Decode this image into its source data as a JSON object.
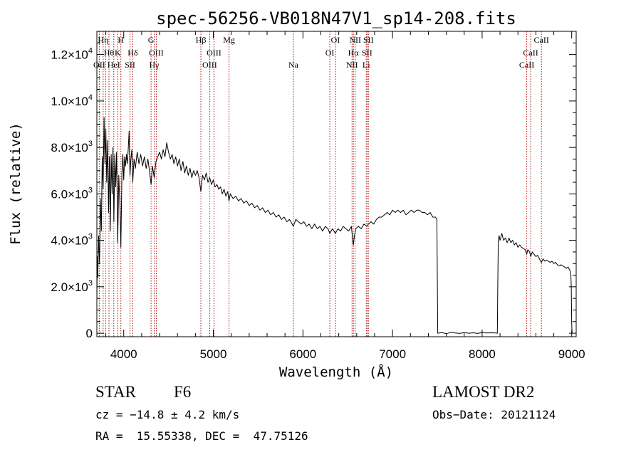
{
  "chart_data": {
    "type": "line",
    "title": "spec-56256-VB018N47V1_sp14-208.fits",
    "xlabel": "Wavelength (Å)",
    "ylabel": "Flux (relative)",
    "xlim": [
      3700,
      9050
    ],
    "ylim": [
      -150,
      13000
    ],
    "x_ticks": [
      4000,
      5000,
      6000,
      7000,
      8000,
      9000
    ],
    "y_ticks": [
      {
        "value": 0,
        "mant": "0",
        "exp": ""
      },
      {
        "value": 2000,
        "mant": "2.0×10",
        "exp": "3"
      },
      {
        "value": 4000,
        "mant": "4.0×10",
        "exp": "3"
      },
      {
        "value": 6000,
        "mant": "6.0×10",
        "exp": "3"
      },
      {
        "value": 8000,
        "mant": "8.0×10",
        "exp": "3"
      },
      {
        "value": 10000,
        "mant": "1.0×10",
        "exp": "4"
      },
      {
        "value": 12000,
        "mant": "1.2×10",
        "exp": "4"
      }
    ],
    "grid": false,
    "series": [
      {
        "points": [
          [
            3700,
            1500
          ],
          [
            3705,
            3300
          ],
          [
            3710,
            2400
          ],
          [
            3720,
            4200
          ],
          [
            3730,
            3000
          ],
          [
            3740,
            5800
          ],
          [
            3750,
            4400
          ],
          [
            3760,
            7600
          ],
          [
            3770,
            6200
          ],
          [
            3780,
            9300
          ],
          [
            3790,
            7300
          ],
          [
            3800,
            8800
          ],
          [
            3810,
            6500
          ],
          [
            3820,
            8300
          ],
          [
            3830,
            5200
          ],
          [
            3840,
            7600
          ],
          [
            3850,
            4400
          ],
          [
            3860,
            7700
          ],
          [
            3870,
            6000
          ],
          [
            3880,
            8000
          ],
          [
            3890,
            4800
          ],
          [
            3900,
            7700
          ],
          [
            3910,
            6300
          ],
          [
            3920,
            7800
          ],
          [
            3933,
            3900
          ],
          [
            3945,
            6800
          ],
          [
            3960,
            5200
          ],
          [
            3968,
            3700
          ],
          [
            3980,
            6900
          ],
          [
            3990,
            7700
          ],
          [
            4000,
            6600
          ],
          [
            4010,
            7600
          ],
          [
            4020,
            7200
          ],
          [
            4030,
            7700
          ],
          [
            4040,
            7300
          ],
          [
            4050,
            7900
          ],
          [
            4060,
            8700
          ],
          [
            4070,
            6800
          ],
          [
            4080,
            7500
          ],
          [
            4090,
            7900
          ],
          [
            4101,
            6500
          ],
          [
            4115,
            7500
          ],
          [
            4130,
            7100
          ],
          [
            4150,
            7800
          ],
          [
            4170,
            7300
          ],
          [
            4190,
            7700
          ],
          [
            4210,
            7200
          ],
          [
            4230,
            7600
          ],
          [
            4250,
            7100
          ],
          [
            4270,
            7500
          ],
          [
            4290,
            6900
          ],
          [
            4305,
            6400
          ],
          [
            4320,
            7200
          ],
          [
            4340,
            6700
          ],
          [
            4360,
            7400
          ],
          [
            4380,
            7600
          ],
          [
            4400,
            7800
          ],
          [
            4420,
            7500
          ],
          [
            4440,
            7900
          ],
          [
            4460,
            7600
          ],
          [
            4480,
            8200
          ],
          [
            4500,
            7800
          ],
          [
            4520,
            7500
          ],
          [
            4540,
            7700
          ],
          [
            4560,
            7300
          ],
          [
            4580,
            7600
          ],
          [
            4600,
            7200
          ],
          [
            4620,
            7500
          ],
          [
            4640,
            7000
          ],
          [
            4660,
            7400
          ],
          [
            4680,
            6900
          ],
          [
            4700,
            7200
          ],
          [
            4720,
            6800
          ],
          [
            4740,
            7100
          ],
          [
            4760,
            6700
          ],
          [
            4780,
            7000
          ],
          [
            4800,
            6800
          ],
          [
            4820,
            7000
          ],
          [
            4840,
            6700
          ],
          [
            4861,
            6100
          ],
          [
            4880,
            6800
          ],
          [
            4900,
            6600
          ],
          [
            4920,
            6900
          ],
          [
            4940,
            6500
          ],
          [
            4960,
            6700
          ],
          [
            4980,
            6400
          ],
          [
            5000,
            6600
          ],
          [
            5020,
            6300
          ],
          [
            5040,
            6400
          ],
          [
            5060,
            6200
          ],
          [
            5080,
            6300
          ],
          [
            5100,
            6000
          ],
          [
            5120,
            6200
          ],
          [
            5140,
            5900
          ],
          [
            5160,
            6100
          ],
          [
            5175,
            5700
          ],
          [
            5190,
            6000
          ],
          [
            5220,
            5800
          ],
          [
            5250,
            5900
          ],
          [
            5280,
            5700
          ],
          [
            5310,
            5800
          ],
          [
            5340,
            5600
          ],
          [
            5370,
            5700
          ],
          [
            5400,
            5500
          ],
          [
            5430,
            5600
          ],
          [
            5460,
            5400
          ],
          [
            5490,
            5500
          ],
          [
            5520,
            5300
          ],
          [
            5550,
            5400
          ],
          [
            5580,
            5200
          ],
          [
            5610,
            5300
          ],
          [
            5640,
            5100
          ],
          [
            5670,
            5200
          ],
          [
            5700,
            5000
          ],
          [
            5730,
            5100
          ],
          [
            5760,
            4900
          ],
          [
            5790,
            5000
          ],
          [
            5820,
            4800
          ],
          [
            5850,
            4900
          ],
          [
            5893,
            4600
          ],
          [
            5920,
            4900
          ],
          [
            5950,
            4800
          ],
          [
            5980,
            4700
          ],
          [
            6010,
            4800
          ],
          [
            6040,
            4600
          ],
          [
            6070,
            4700
          ],
          [
            6100,
            4500
          ],
          [
            6130,
            4700
          ],
          [
            6160,
            4500
          ],
          [
            6190,
            4600
          ],
          [
            6220,
            4400
          ],
          [
            6250,
            4600
          ],
          [
            6280,
            4500
          ],
          [
            6300,
            4300
          ],
          [
            6330,
            4500
          ],
          [
            6363,
            4300
          ],
          [
            6390,
            4500
          ],
          [
            6420,
            4400
          ],
          [
            6450,
            4600
          ],
          [
            6480,
            4500
          ],
          [
            6510,
            4400
          ],
          [
            6540,
            4600
          ],
          [
            6563,
            3800
          ],
          [
            6575,
            4200
          ],
          [
            6590,
            4500
          ],
          [
            6620,
            4600
          ],
          [
            6650,
            4500
          ],
          [
            6680,
            4700
          ],
          [
            6716,
            4600
          ],
          [
            6731,
            4700
          ],
          [
            6760,
            4800
          ],
          [
            6790,
            4700
          ],
          [
            6820,
            4900
          ],
          [
            6850,
            5000
          ],
          [
            6880,
            5000
          ],
          [
            6910,
            5100
          ],
          [
            6940,
            5200
          ],
          [
            6970,
            5100
          ],
          [
            7000,
            5300
          ],
          [
            7030,
            5200
          ],
          [
            7060,
            5300
          ],
          [
            7090,
            5200
          ],
          [
            7120,
            5300
          ],
          [
            7150,
            5100
          ],
          [
            7180,
            5200
          ],
          [
            7210,
            5300
          ],
          [
            7240,
            5200
          ],
          [
            7270,
            5300
          ],
          [
            7300,
            5300
          ],
          [
            7330,
            5200
          ],
          [
            7360,
            5200
          ],
          [
            7390,
            5100
          ],
          [
            7420,
            5200
          ],
          [
            7450,
            5000
          ],
          [
            7480,
            5000
          ],
          [
            7495,
            4900
          ],
          [
            7500,
            2500
          ],
          [
            7505,
            0
          ],
          [
            7550,
            30
          ],
          [
            7600,
            -20
          ],
          [
            7650,
            40
          ],
          [
            7700,
            10
          ],
          [
            7750,
            -10
          ],
          [
            7800,
            30
          ],
          [
            7850,
            0
          ],
          [
            7900,
            20
          ],
          [
            7950,
            -10
          ],
          [
            8000,
            30
          ],
          [
            8050,
            10
          ],
          [
            8100,
            20
          ],
          [
            8150,
            10
          ],
          [
            8170,
            0
          ],
          [
            8175,
            2000
          ],
          [
            8180,
            4000
          ],
          [
            8190,
            4200
          ],
          [
            8200,
            4000
          ],
          [
            8220,
            4300
          ],
          [
            8240,
            4000
          ],
          [
            8260,
            4100
          ],
          [
            8280,
            3900
          ],
          [
            8300,
            4100
          ],
          [
            8320,
            3900
          ],
          [
            8340,
            4000
          ],
          [
            8360,
            3800
          ],
          [
            8380,
            3900
          ],
          [
            8400,
            3700
          ],
          [
            8420,
            3800
          ],
          [
            8440,
            3700
          ],
          [
            8460,
            3650
          ],
          [
            8480,
            3600
          ],
          [
            8498,
            3400
          ],
          [
            8510,
            3600
          ],
          [
            8530,
            3500
          ],
          [
            8542,
            3300
          ],
          [
            8560,
            3500
          ],
          [
            8580,
            3400
          ],
          [
            8600,
            3300
          ],
          [
            8620,
            3350
          ],
          [
            8640,
            3200
          ],
          [
            8662,
            3050
          ],
          [
            8680,
            3200
          ],
          [
            8700,
            3100
          ],
          [
            8720,
            3150
          ],
          [
            8740,
            3100
          ],
          [
            8760,
            3050
          ],
          [
            8780,
            3100
          ],
          [
            8800,
            3000
          ],
          [
            8820,
            3050
          ],
          [
            8840,
            2950
          ],
          [
            8860,
            2900
          ],
          [
            8880,
            2950
          ],
          [
            8900,
            2900
          ],
          [
            8920,
            2850
          ],
          [
            8940,
            2800
          ],
          [
            8960,
            2850
          ],
          [
            8980,
            2700
          ],
          [
            8990,
            2500
          ],
          [
            8995,
            2000
          ],
          [
            9000,
            400
          ],
          [
            9005,
            0
          ]
        ]
      }
    ],
    "lines": [
      {
        "x": 3727,
        "row": 2,
        "label": "OII"
      },
      {
        "x": 3770,
        "row": 0,
        "label": "Hη"
      },
      {
        "x": 3798,
        "row": 0,
        "label": ""
      },
      {
        "x": 3835,
        "row": 1,
        "label": "Hθ"
      },
      {
        "x": 3889,
        "row": 2,
        "label": "HeI"
      },
      {
        "x": 3933,
        "row": 1,
        "label": "K"
      },
      {
        "x": 3968,
        "row": 0,
        "label": "H"
      },
      {
        "x": 4070,
        "row": 2,
        "label": "SII"
      },
      {
        "x": 4101,
        "row": 1,
        "label": "Hδ"
      },
      {
        "x": 4305,
        "row": 0,
        "label": "G"
      },
      {
        "x": 4340,
        "row": 2,
        "label": "Hγ"
      },
      {
        "x": 4363,
        "row": 1,
        "label": "OIII"
      },
      {
        "x": 4861,
        "row": 0,
        "label": "Hβ"
      },
      {
        "x": 4959,
        "row": 2,
        "label": "OIII"
      },
      {
        "x": 5007,
        "row": 1,
        "label": "OIII"
      },
      {
        "x": 5175,
        "row": 0,
        "label": "Mg"
      },
      {
        "x": 5893,
        "row": 2,
        "label": "Na"
      },
      {
        "x": 6300,
        "row": 1,
        "label": "OI"
      },
      {
        "x": 6363,
        "row": 0,
        "label": "OI"
      },
      {
        "x": 6548,
        "row": 2,
        "label": "NII"
      },
      {
        "x": 6563,
        "row": 1,
        "label": "Hα"
      },
      {
        "x": 6583,
        "row": 0,
        "label": "NII"
      },
      {
        "x": 6707,
        "row": 2,
        "label": "Li"
      },
      {
        "x": 6716,
        "row": 1,
        "label": "SII"
      },
      {
        "x": 6731,
        "row": 0,
        "label": "SII"
      },
      {
        "x": 8498,
        "row": 2,
        "label": "CaII"
      },
      {
        "x": 8542,
        "row": 1,
        "label": "CaII"
      },
      {
        "x": 8662,
        "row": 0,
        "label": "CaII"
      }
    ]
  },
  "info": {
    "class_label": "STAR",
    "subclass": "F6",
    "survey": "LAMOST DR2",
    "cz": "cz = −14.8 ± 4.2 km/s",
    "obs_date": "Obs−Date: 20121124",
    "coords": "RA =  15.55338, DEC =  47.75126"
  }
}
